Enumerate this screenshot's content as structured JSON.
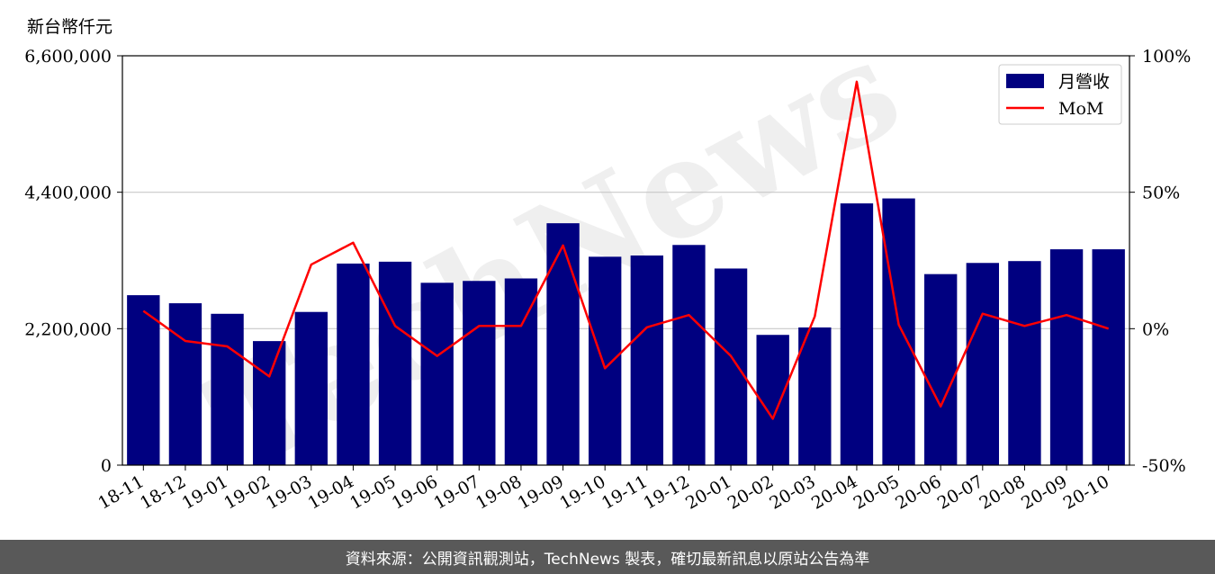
{
  "unit_label": "新台幣仟元",
  "footer_text": "資料來源：公開資訊觀測站，TechNews 製表，確切最新訊息以原站公告為準",
  "watermark": "TechNews",
  "colors": {
    "bar": "#000080",
    "line": "#ff0000",
    "grid": "#c8c8c8",
    "footer_bg": "#595959"
  },
  "chart_data": {
    "type": "bar",
    "categories": [
      "18-11",
      "18-12",
      "19-01",
      "19-02",
      "19-03",
      "19-04",
      "19-05",
      "19-06",
      "19-07",
      "19-08",
      "19-09",
      "19-10",
      "19-11",
      "19-12",
      "20-01",
      "20-02",
      "20-03",
      "20-04",
      "20-05",
      "20-06",
      "20-07",
      "20-08",
      "20-09",
      "20-10"
    ],
    "series": [
      {
        "name": "月營收",
        "type": "bar",
        "axis": "left",
        "values": [
          2740000,
          2610000,
          2440000,
          2000000,
          2470000,
          3250000,
          3280000,
          2940000,
          2970000,
          3010000,
          3900000,
          3360000,
          3380000,
          3550000,
          3170000,
          2100000,
          2220000,
          4220000,
          4300000,
          3080000,
          3260000,
          3290000,
          3480000,
          3480000
        ]
      },
      {
        "name": "MoM",
        "type": "line",
        "axis": "right",
        "values": [
          6.5,
          -4.5,
          -6.5,
          -17.5,
          23.5,
          31.5,
          1.0,
          -10.0,
          1.0,
          1.0,
          30.5,
          -14.5,
          0.5,
          5.0,
          -10.0,
          -33.0,
          4.5,
          90.5,
          1.5,
          -28.5,
          5.5,
          1.0,
          5.0,
          0.0
        ]
      }
    ],
    "y_left": {
      "min": 0,
      "max": 6600000,
      "ticks": [
        0,
        2200000,
        4400000,
        6600000
      ],
      "tick_labels": [
        "0",
        "2,200,000",
        "4,400,000",
        "6,600,000"
      ]
    },
    "y_right": {
      "min": -50,
      "max": 100,
      "ticks": [
        -50,
        0,
        50,
        100
      ],
      "tick_labels": [
        "-50%",
        "0%",
        "50%",
        "100%"
      ]
    },
    "grid": "horizontal",
    "legend": {
      "position": "top-right",
      "entries": [
        "月營收",
        "MoM"
      ]
    }
  }
}
